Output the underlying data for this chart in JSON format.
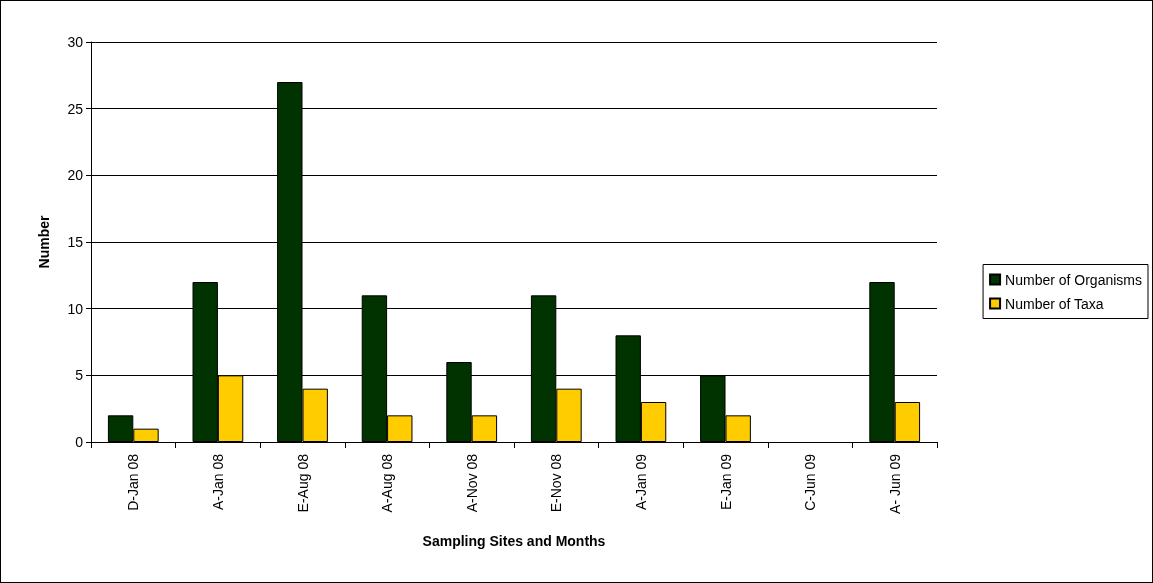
{
  "chart_data": {
    "type": "bar",
    "xlabel": "Sampling Sites and Months",
    "ylabel": "Number",
    "categories": [
      "D-Jan 08",
      "A-Jan 08",
      "E-Aug 08",
      "A-Aug 08",
      "A-Nov 08",
      "E-Nov 08",
      "A-Jan 09",
      "E-Jan 09",
      "C-Jun 09",
      "A- Jun 09"
    ],
    "series": [
      {
        "name": "Number of Organisms",
        "color": "#003300",
        "values": [
          2,
          12,
          27,
          11,
          6,
          11,
          8,
          5,
          0,
          12
        ]
      },
      {
        "name": "Number of Taxa",
        "color": "#ffcc00",
        "values": [
          1,
          5,
          4,
          2,
          2,
          4,
          3,
          2,
          0,
          3
        ]
      }
    ],
    "ylim": [
      0,
      30
    ],
    "yticks": [
      0,
      5,
      10,
      15,
      20,
      25,
      30
    ],
    "grid": "y",
    "legend": "right"
  }
}
